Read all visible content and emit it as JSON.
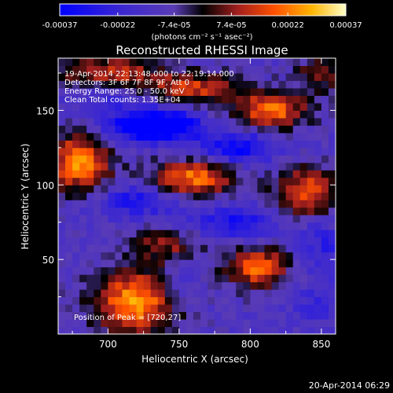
{
  "chart_data": {
    "type": "heatmap",
    "title": "Reconstructed RHESSI Image",
    "xlabel": "Heliocentric X (arcsec)",
    "ylabel": "Heliocentric Y (arcsec)",
    "xlim": [
      665,
      860
    ],
    "ylim": [
      0,
      185
    ],
    "x_ticks": [
      700,
      750,
      800,
      850
    ],
    "y_ticks": [
      50,
      100,
      150
    ],
    "colorbar": {
      "range": [
        -0.00037,
        0.00037
      ],
      "tick_values": [
        -0.00037,
        -0.00022,
        -7.4e-05,
        7.4e-05,
        0.00022,
        0.00037
      ],
      "tick_labels": [
        "-0.00037",
        "-0.00022",
        "-7.4e-05",
        "7.4e-05",
        "0.00022",
        "0.00037"
      ],
      "unit_label": "(photons cm⁻² s⁻¹ asec⁻²)"
    },
    "annotations": [
      "19-Apr-2014 22:13:48.000 to 22:19:14.000",
      "Detectors: 3F 6F 7F 8F 9F, Att 0",
      "Energy Range: 25.0 - 50.0 keV",
      "Clean    Total counts: 1.35E+04"
    ],
    "peak_label": "Position of Peak = [720,27]",
    "peak": [
      720,
      27
    ],
    "blobs": [
      {
        "x": 720,
        "y": 22,
        "amp": 0.00037,
        "sx": 22,
        "sy": 16
      },
      {
        "x": 760,
        "y": 105,
        "amp": 0.00033,
        "sx": 22,
        "sy": 9
      },
      {
        "x": 680,
        "y": 115,
        "amp": 0.00035,
        "sx": 16,
        "sy": 14
      },
      {
        "x": 815,
        "y": 150,
        "amp": 0.00033,
        "sx": 18,
        "sy": 9
      },
      {
        "x": 840,
        "y": 95,
        "amp": 0.0003,
        "sx": 16,
        "sy": 12
      },
      {
        "x": 805,
        "y": 45,
        "amp": 0.00031,
        "sx": 16,
        "sy": 10
      },
      {
        "x": 740,
        "y": 60,
        "amp": 0.00018,
        "sx": 18,
        "sy": 8
      },
      {
        "x": 760,
        "y": 165,
        "amp": 0.00024,
        "sx": 25,
        "sy": 8
      },
      {
        "x": 700,
        "y": 175,
        "amp": 0.00026,
        "sx": 25,
        "sy": 8
      },
      {
        "x": 850,
        "y": 175,
        "amp": 0.0002,
        "sx": 12,
        "sy": 8
      },
      {
        "x": 700,
        "y": 160,
        "amp": -0.0001,
        "sx": 18,
        "sy": 8
      },
      {
        "x": 720,
        "y": 140,
        "amp": -0.0003,
        "sx": 16,
        "sy": 7
      },
      {
        "x": 745,
        "y": 140,
        "amp": -0.00026,
        "sx": 16,
        "sy": 8
      },
      {
        "x": 790,
        "y": 125,
        "amp": -0.00024,
        "sx": 18,
        "sy": 8
      },
      {
        "x": 720,
        "y": 90,
        "amp": -0.00018,
        "sx": 20,
        "sy": 8
      },
      {
        "x": 790,
        "y": 75,
        "amp": -0.00018,
        "sx": 22,
        "sy": 8
      },
      {
        "x": 850,
        "y": 60,
        "amp": -0.00012,
        "sx": 12,
        "sy": 14
      },
      {
        "x": 750,
        "y": 30,
        "amp": -0.00012,
        "sx": 12,
        "sy": 10
      },
      {
        "x": 845,
        "y": 20,
        "amp": -8e-05,
        "sx": 12,
        "sy": 10
      }
    ]
  },
  "footer_timestamp": "20-Apr-2014 06:29"
}
